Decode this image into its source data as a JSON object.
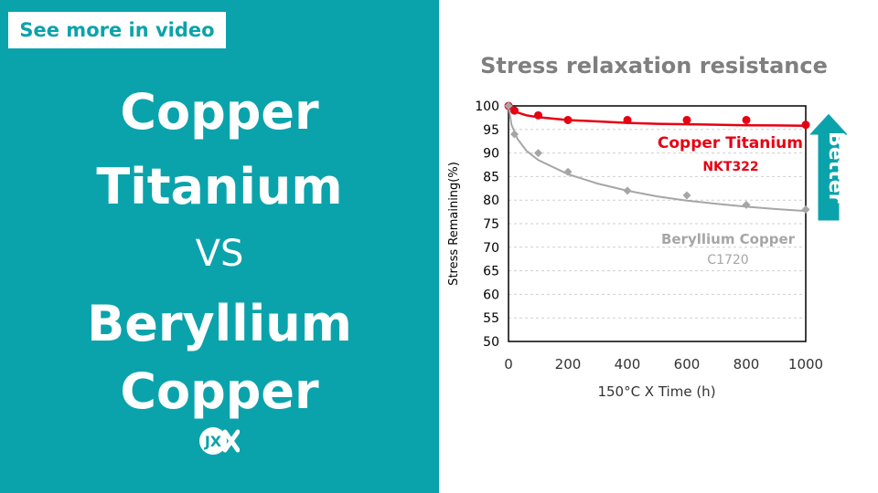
{
  "left_panel": {
    "video_label": "See more in video",
    "headline_lines": [
      "Copper",
      "Titanium",
      "VS",
      "Beryllium",
      "Copper"
    ],
    "logo_text": "JX",
    "bg_color": "#0ba3ab"
  },
  "chart_data": {
    "type": "scatter",
    "title": "Stress relaxation resistance",
    "xlabel": "150°C X Time (h)",
    "ylabel": "Stress Remaining(%)",
    "xlim": [
      0,
      1000
    ],
    "ylim": [
      50,
      100
    ],
    "x_ticks": [
      0,
      200,
      400,
      600,
      800,
      1000
    ],
    "y_ticks": [
      50,
      55,
      60,
      65,
      70,
      75,
      80,
      85,
      90,
      95,
      100
    ],
    "grid": true,
    "series": [
      {
        "name": "Copper Titanium",
        "sublabel": "NKT322",
        "color": "#e60012",
        "marker": "circle",
        "points": [
          [
            0,
            100
          ],
          [
            20,
            99
          ],
          [
            100,
            98
          ],
          [
            200,
            97
          ],
          [
            400,
            97
          ],
          [
            600,
            97
          ],
          [
            800,
            97
          ],
          [
            1000,
            96
          ]
        ],
        "trend": [
          [
            0,
            100
          ],
          [
            20,
            98.8
          ],
          [
            60,
            98
          ],
          [
            100,
            97.6
          ],
          [
            200,
            97
          ],
          [
            300,
            96.7
          ],
          [
            400,
            96.4
          ],
          [
            500,
            96.2
          ],
          [
            600,
            96.1
          ],
          [
            700,
            96.0
          ],
          [
            800,
            95.9
          ],
          [
            900,
            95.85
          ],
          [
            1000,
            95.8
          ]
        ]
      },
      {
        "name": "Beryllium Copper",
        "sublabel": "C1720",
        "color": "#a6a6a6",
        "marker": "diamond",
        "points": [
          [
            0,
            100
          ],
          [
            20,
            94
          ],
          [
            100,
            90
          ],
          [
            200,
            86
          ],
          [
            400,
            82
          ],
          [
            600,
            81
          ],
          [
            800,
            79
          ],
          [
            1000,
            78
          ]
        ],
        "trend": [
          [
            0,
            100
          ],
          [
            10,
            96
          ],
          [
            30,
            93
          ],
          [
            60,
            90.5
          ],
          [
            100,
            88.5
          ],
          [
            200,
            85.5
          ],
          [
            300,
            83.5
          ],
          [
            400,
            82
          ],
          [
            500,
            80.8
          ],
          [
            600,
            79.9
          ],
          [
            700,
            79.2
          ],
          [
            800,
            78.6
          ],
          [
            900,
            78.1
          ],
          [
            1000,
            77.7
          ]
        ]
      }
    ],
    "annotation": {
      "label": "Better",
      "color": "#0ba3ab",
      "direction": "up"
    }
  }
}
